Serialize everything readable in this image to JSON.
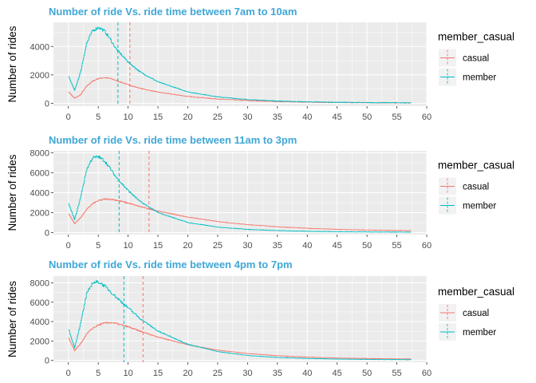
{
  "colors": {
    "casual": "#F8766D",
    "member": "#00BFC4",
    "title": "#3FA7D6",
    "panel": "#EBEBEB",
    "grid": "#FFFFFF"
  },
  "chart_data": [
    {
      "type": "line",
      "title": "Number of ride Vs. ride time between 7am to 10am",
      "xlabel": "",
      "ylabel": "Number of rides",
      "xlim": [
        -2.5,
        60
      ],
      "ylim": [
        -200,
        5700
      ],
      "xticks": [
        "0",
        "5",
        "10",
        "15",
        "20",
        "25",
        "30",
        "35",
        "40",
        "45",
        "50",
        "55",
        "60"
      ],
      "yticks": [
        "0",
        "2000",
        "4000"
      ],
      "legend": {
        "title": "member_casual",
        "position": "right",
        "items": [
          "casual",
          "member"
        ]
      },
      "vlines": {
        "casual": 10.3,
        "member": 8.3
      },
      "series": [
        {
          "name": "casual",
          "x": [
            0,
            1,
            2,
            3,
            4,
            5,
            6,
            7,
            8,
            10,
            12,
            15,
            20,
            25,
            30,
            35,
            40,
            45,
            50,
            57.5
          ],
          "values": [
            800,
            350,
            600,
            1200,
            1550,
            1750,
            1800,
            1750,
            1600,
            1300,
            1050,
            780,
            480,
            300,
            190,
            120,
            80,
            55,
            40,
            25
          ]
        },
        {
          "name": "member",
          "x": [
            0,
            1,
            2,
            3,
            4,
            5,
            6,
            7,
            8,
            10,
            12,
            15,
            20,
            25,
            30,
            35,
            40,
            45,
            50,
            57.5
          ],
          "values": [
            1900,
            900,
            2200,
            4200,
            5100,
            5350,
            5100,
            4500,
            3800,
            2900,
            2200,
            1500,
            800,
            450,
            260,
            160,
            100,
            70,
            50,
            35
          ]
        }
      ]
    },
    {
      "type": "line",
      "title": "Number of ride Vs. ride time between 11am to 3pm",
      "xlabel": "",
      "ylabel": "Number of rides",
      "xlim": [
        -2.5,
        60
      ],
      "ylim": [
        -200,
        8200
      ],
      "xticks": [
        "0",
        "5",
        "10",
        "15",
        "20",
        "25",
        "30",
        "35",
        "40",
        "45",
        "50",
        "55",
        "60"
      ],
      "yticks": [
        "0",
        "2000",
        "4000",
        "6000",
        "8000"
      ],
      "legend": {
        "title": "member_casual",
        "position": "right",
        "items": [
          "casual",
          "member"
        ]
      },
      "vlines": {
        "casual": 13.5,
        "member": 8.5
      },
      "series": [
        {
          "name": "casual",
          "x": [
            0,
            1,
            2,
            3,
            4,
            5,
            6,
            7,
            8,
            10,
            12,
            15,
            20,
            25,
            30,
            35,
            40,
            45,
            50,
            57.5
          ],
          "values": [
            1900,
            900,
            1500,
            2300,
            2900,
            3200,
            3350,
            3350,
            3250,
            2950,
            2600,
            2150,
            1550,
            1100,
            800,
            580,
            430,
            320,
            250,
            190
          ]
        },
        {
          "name": "member",
          "x": [
            0,
            1,
            2,
            3,
            4,
            5,
            6,
            7,
            8,
            10,
            12,
            15,
            20,
            25,
            30,
            35,
            40,
            45,
            50,
            57.5
          ],
          "values": [
            2900,
            1300,
            3500,
            6300,
            7500,
            7600,
            7200,
            6400,
            5500,
            4200,
            3100,
            2000,
            1000,
            550,
            320,
            200,
            130,
            90,
            65,
            45
          ]
        }
      ]
    },
    {
      "type": "line",
      "title": "Number of ride Vs. ride time between 4pm to 7pm",
      "xlabel": "",
      "ylabel": "Number of rides",
      "xlim": [
        -2.5,
        60
      ],
      "ylim": [
        -200,
        8700
      ],
      "xticks": [
        "0",
        "5",
        "10",
        "15",
        "20",
        "25",
        "30",
        "35",
        "40",
        "45",
        "50",
        "55",
        "60"
      ],
      "yticks": [
        "0",
        "2000",
        "4000",
        "6000",
        "8000"
      ],
      "legend": {
        "title": "member_casual",
        "position": "right",
        "items": [
          "casual",
          "member"
        ]
      },
      "vlines": {
        "casual": 12.5,
        "member": 9.3
      },
      "series": [
        {
          "name": "casual",
          "x": [
            0,
            1,
            2,
            3,
            4,
            5,
            6,
            7,
            8,
            10,
            12,
            15,
            20,
            25,
            30,
            35,
            40,
            45,
            50,
            57.5
          ],
          "values": [
            2300,
            1000,
            1700,
            2700,
            3300,
            3650,
            3850,
            3900,
            3800,
            3450,
            3000,
            2400,
            1600,
            1050,
            700,
            470,
            330,
            240,
            180,
            130
          ]
        },
        {
          "name": "member",
          "x": [
            0,
            1,
            2,
            3,
            4,
            5,
            6,
            7,
            8,
            10,
            12,
            15,
            20,
            25,
            30,
            35,
            40,
            45,
            50,
            57.5
          ],
          "values": [
            3200,
            1300,
            3800,
            6800,
            8000,
            8100,
            7700,
            7100,
            6500,
            5400,
            4300,
            3000,
            1650,
            900,
            500,
            300,
            190,
            130,
            95,
            65
          ]
        }
      ]
    }
  ]
}
